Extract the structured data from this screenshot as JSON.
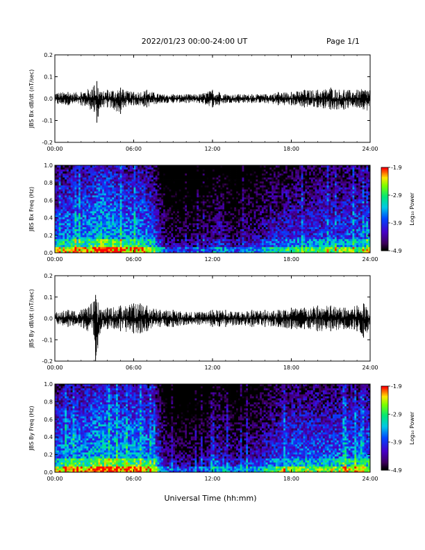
{
  "header": {
    "title": "2022/01/23  00:00-24:00 UT",
    "page": "Page 1/1"
  },
  "x_axis_title": "Universal Time (hh:mm)",
  "chart_data": [
    {
      "type": "line",
      "ylabel": "JBS Bx dB/dt (nT/sec)",
      "xlabel": "",
      "x_ticks": [
        "00:00",
        "06:00",
        "12:00",
        "18:00",
        "24:00"
      ],
      "y_ticks": [
        "-0.2",
        "-0.1",
        "0.0",
        "0.1",
        "0.2"
      ],
      "ylim": [
        -0.2,
        0.2
      ],
      "xlim_hours": [
        0,
        24
      ],
      "series": [
        {
          "x_hours": [
            0,
            1,
            2,
            3,
            3.2,
            3.5,
            4,
            5,
            5.2,
            6,
            7,
            8,
            9,
            10,
            11,
            12,
            12.5,
            13,
            14,
            15,
            16,
            17,
            18,
            19,
            20,
            21,
            22,
            23,
            24
          ],
          "envelope_max": [
            0.03,
            0.03,
            0.03,
            0.06,
            0.08,
            0.03,
            0.04,
            0.05,
            0.04,
            0.03,
            0.04,
            0.02,
            0.02,
            0.02,
            0.02,
            0.04,
            0.03,
            0.02,
            0.02,
            0.02,
            0.02,
            0.03,
            0.03,
            0.04,
            0.04,
            0.05,
            0.04,
            0.04,
            0.05
          ],
          "envelope_min": [
            -0.03,
            -0.03,
            -0.03,
            -0.06,
            -0.11,
            -0.04,
            -0.04,
            -0.07,
            -0.04,
            -0.03,
            -0.04,
            -0.02,
            -0.02,
            -0.02,
            -0.02,
            -0.04,
            -0.03,
            -0.02,
            -0.02,
            -0.02,
            -0.02,
            -0.03,
            -0.03,
            -0.04,
            -0.04,
            -0.05,
            -0.05,
            -0.04,
            -0.06
          ]
        }
      ]
    },
    {
      "type": "heatmap",
      "ylabel": "JBS Bx Freq (Hz)",
      "x_ticks": [
        "00:00",
        "06:00",
        "12:00",
        "18:00",
        "24:00"
      ],
      "y_ticks": [
        "0.0",
        "0.2",
        "0.4",
        "0.6",
        "0.8",
        "1.0"
      ],
      "ylim": [
        0.0,
        1.0
      ],
      "colorbar_label": "Log₁₀ Power",
      "colorbar_ticks": [
        "-1.9",
        "-2.9",
        "-3.9",
        "-4.9"
      ],
      "colorbar_range": [
        -4.9,
        -1.9
      ],
      "activity_by_hour": [
        0.55,
        0.6,
        0.6,
        0.7,
        0.65,
        0.6,
        0.6,
        0.5,
        0.15,
        0.12,
        0.12,
        0.15,
        0.3,
        0.15,
        0.2,
        0.25,
        0.35,
        0.4,
        0.42,
        0.42,
        0.45,
        0.45,
        0.48,
        0.5
      ]
    },
    {
      "type": "line",
      "ylabel": "JBS By dB/dt (nT/sec)",
      "xlabel": "",
      "x_ticks": [
        "00:00",
        "06:00",
        "12:00",
        "18:00",
        "24:00"
      ],
      "y_ticks": [
        "-0.2",
        "-0.1",
        "0.0",
        "0.1",
        "0.2"
      ],
      "ylim": [
        -0.2,
        0.2
      ],
      "xlim_hours": [
        0,
        24
      ],
      "series": [
        {
          "x_hours": [
            0,
            1,
            2,
            3,
            3.1,
            3.5,
            4,
            5,
            6,
            6.5,
            7,
            8,
            9,
            10,
            11,
            12,
            13,
            14,
            15,
            16,
            17,
            18,
            19,
            20,
            21,
            22,
            23,
            23.5,
            24
          ],
          "envelope_max": [
            0.03,
            0.04,
            0.04,
            0.08,
            0.11,
            0.04,
            0.05,
            0.06,
            0.07,
            0.07,
            0.06,
            0.04,
            0.04,
            0.03,
            0.03,
            0.04,
            0.04,
            0.03,
            0.04,
            0.04,
            0.04,
            0.05,
            0.05,
            0.06,
            0.06,
            0.05,
            0.06,
            0.07,
            0.05
          ],
          "envelope_min": [
            -0.03,
            -0.04,
            -0.04,
            -0.08,
            -0.21,
            -0.05,
            -0.05,
            -0.06,
            -0.07,
            -0.07,
            -0.06,
            -0.04,
            -0.04,
            -0.03,
            -0.03,
            -0.04,
            -0.04,
            -0.03,
            -0.04,
            -0.04,
            -0.04,
            -0.05,
            -0.05,
            -0.06,
            -0.06,
            -0.05,
            -0.06,
            -0.09,
            -0.05
          ]
        }
      ]
    },
    {
      "type": "heatmap",
      "ylabel": "JBS By Freq (Hz)",
      "x_ticks": [
        "00:00",
        "06:00",
        "12:00",
        "18:00",
        "24:00"
      ],
      "y_ticks": [
        "0.0",
        "0.2",
        "0.4",
        "0.6",
        "0.8",
        "1.0"
      ],
      "ylim": [
        0.0,
        1.0
      ],
      "colorbar_label": "Log₁₀ Power",
      "colorbar_ticks": [
        "-1.9",
        "-2.9",
        "-3.9",
        "-4.9"
      ],
      "colorbar_range": [
        -4.9,
        -1.9
      ],
      "activity_by_hour": [
        0.6,
        0.62,
        0.62,
        0.72,
        0.68,
        0.65,
        0.65,
        0.55,
        0.18,
        0.15,
        0.14,
        0.18,
        0.35,
        0.2,
        0.25,
        0.3,
        0.4,
        0.48,
        0.5,
        0.5,
        0.5,
        0.52,
        0.55,
        0.55
      ]
    }
  ]
}
